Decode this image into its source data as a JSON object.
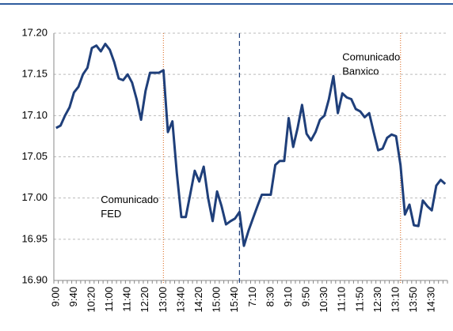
{
  "chart_data": {
    "type": "line",
    "categories": [
      "9:00",
      null,
      null,
      null,
      "9:40",
      null,
      null,
      null,
      "10:20",
      null,
      null,
      null,
      "11:00",
      null,
      null,
      null,
      "11:40",
      null,
      null,
      null,
      "12:20",
      null,
      null,
      null,
      "13:00",
      null,
      null,
      null,
      "13:40",
      null,
      null,
      null,
      "14:20",
      null,
      null,
      null,
      "15:00",
      null,
      null,
      null,
      "15:40",
      null,
      null,
      null,
      "7:10",
      null,
      null,
      null,
      "8:30",
      null,
      null,
      null,
      "9:10",
      null,
      null,
      null,
      "9:50",
      null,
      null,
      null,
      "10:30",
      null,
      null,
      null,
      "11:10",
      null,
      null,
      null,
      "11:50",
      null,
      null,
      null,
      "12:30",
      null,
      null,
      null,
      "13:10",
      null,
      null,
      null,
      "13:50",
      null,
      null,
      null,
      "14:30",
      null,
      null,
      null
    ],
    "series": [
      {
        "color": "#1f3f7a",
        "values": [
          17.085,
          17.088,
          17.1,
          17.11,
          17.128,
          17.135,
          17.15,
          17.158,
          17.182,
          17.185,
          17.178,
          17.187,
          17.18,
          17.165,
          17.145,
          17.143,
          17.15,
          17.14,
          17.12,
          17.095,
          17.13,
          17.152,
          17.152,
          17.152,
          17.155,
          17.08,
          17.093,
          17.03,
          16.977,
          16.977,
          17.005,
          17.033,
          17.02,
          17.038,
          17.0,
          16.972,
          17.008,
          16.99,
          16.968,
          16.972,
          16.975,
          16.983,
          16.942,
          16.96,
          16.975,
          16.99,
          17.004,
          17.004,
          17.004,
          17.04,
          17.045,
          17.045,
          17.097,
          17.062,
          17.085,
          17.113,
          17.078,
          17.07,
          17.08,
          17.095,
          17.1,
          17.12,
          17.148,
          17.103,
          17.127,
          17.122,
          17.12,
          17.108,
          17.105,
          17.098,
          17.103,
          17.08,
          17.058,
          17.06,
          17.073,
          17.077,
          17.075,
          17.04,
          16.98,
          16.992,
          16.967,
          16.966,
          16.997,
          16.99,
          16.985,
          17.015,
          17.022,
          17.017
        ]
      }
    ],
    "ylim": [
      16.9,
      17.2
    ],
    "yticks": [
      {
        "value": 16.9,
        "label": "16.90"
      },
      16.95,
      {
        "value": 17.0,
        "label": "17.00"
      },
      17.05,
      {
        "value": 17.1,
        "label": "17.10"
      },
      17.15,
      {
        "value": 17.2,
        "label": "17.20"
      }
    ],
    "grid": true,
    "vertical_lines": [
      {
        "index": 24,
        "color": "#e07b39",
        "dash": "1,2"
      },
      {
        "index": 41,
        "color": "#1f3f7a",
        "dash": "6,4"
      },
      {
        "index": 77,
        "color": "#e07b39",
        "dash": "1,2"
      }
    ],
    "annotations": [
      {
        "lines": [
          "Comunicado",
          "FED"
        ],
        "index": 10,
        "value": 16.997
      },
      {
        "lines": [
          "Comunicado",
          "Banxico"
        ],
        "index": 64,
        "value": 17.17
      }
    ]
  }
}
